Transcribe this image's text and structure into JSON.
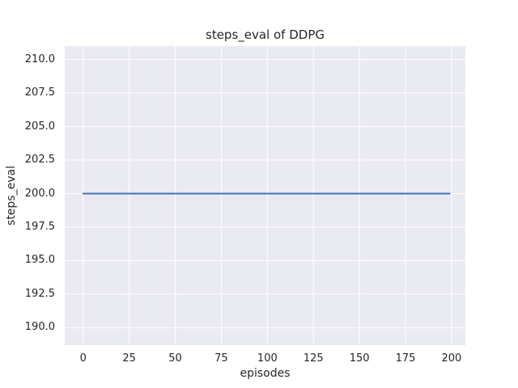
{
  "chart_data": {
    "type": "line",
    "title": "steps_eval of DDPG",
    "xlabel": "episodes",
    "ylabel": "steps_eval",
    "x_ticks": [
      0,
      25,
      50,
      75,
      100,
      125,
      150,
      175,
      200
    ],
    "y_tick_labels": [
      "190.0",
      "192.5",
      "195.0",
      "197.5",
      "200.0",
      "202.5",
      "205.0",
      "207.5",
      "210.0"
    ],
    "xlim": [
      -10,
      207.5
    ],
    "ylim": [
      188.7,
      211.0
    ],
    "grid": true,
    "legend_position": "none",
    "plot_background_color": "#eaeaf2",
    "grid_color": "#ffffff",
    "text_color": "#262626",
    "series": [
      {
        "name": "DDPG",
        "color": "#4c72b0",
        "line_width": 2,
        "x": [
          0,
          199
        ],
        "y": [
          200.0,
          200.0
        ],
        "note": "constant value 200.0 for all episodes 0-199"
      }
    ]
  }
}
